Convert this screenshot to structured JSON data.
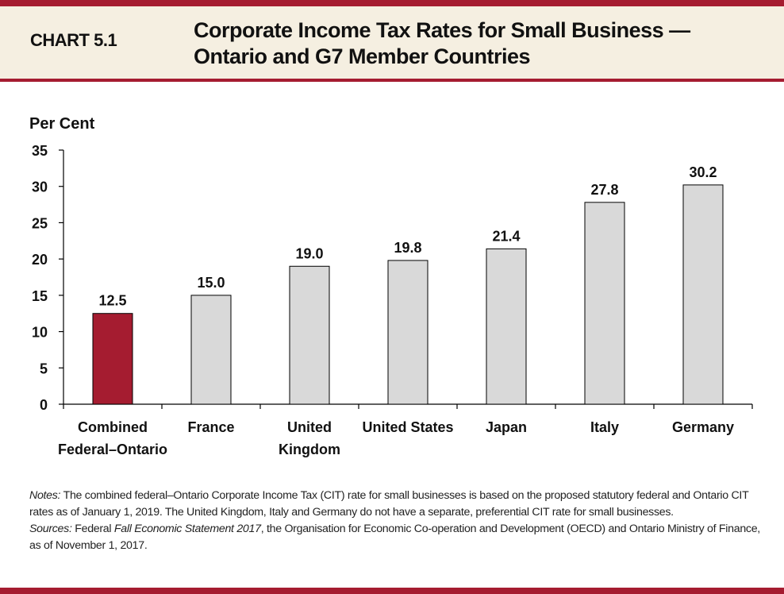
{
  "header": {
    "chart_number": "CHART 5.1",
    "title_line1": "Corporate Income Tax Rates for Small Business —",
    "title_line2": "Ontario and G7 Member Countries"
  },
  "colors": {
    "accent": "#a51c30",
    "header_bg": "#f5efe1",
    "highlight_bar": "#a51c30",
    "bar": "#d9d9d9"
  },
  "chart_data": {
    "type": "bar",
    "title": "Corporate Income Tax Rates for Small Business — Ontario and G7 Member Countries",
    "ylabel": "Per Cent",
    "xlabel": "",
    "categories": [
      [
        "Combined",
        "Federal–Ontario"
      ],
      [
        "France"
      ],
      [
        "United",
        "Kingdom"
      ],
      [
        "United States"
      ],
      [
        "Japan"
      ],
      [
        "Italy"
      ],
      [
        "Germany"
      ]
    ],
    "values": [
      12.5,
      15.0,
      19.0,
      19.8,
      21.4,
      27.8,
      30.2
    ],
    "data_labels": [
      "12.5",
      "15.0",
      "19.0",
      "19.8",
      "21.4",
      "27.8",
      "30.2"
    ],
    "highlight_index": 0,
    "ylim": [
      0,
      35
    ],
    "yticks": [
      0,
      5,
      10,
      15,
      20,
      25,
      30,
      35
    ],
    "grid": false,
    "legend": "none"
  },
  "notes": {
    "notes_label": "Notes:",
    "notes_text": " The combined federal–Ontario Corporate Income Tax (CIT) rate for small businesses is based on the proposed statutory federal and Ontario CIT rates as of January 1, 2019. The United Kingdom, Italy and Germany do not have a separate, preferential CIT rate for small businesses.",
    "sources_label": "Sources:",
    "sources_text1": " Federal ",
    "sources_italic": "Fall Economic Statement 2017",
    "sources_text2": ", the Organisation for Economic Co-operation and Development (OECD) and Ontario Ministry of Finance, as of November 1, 2017."
  }
}
